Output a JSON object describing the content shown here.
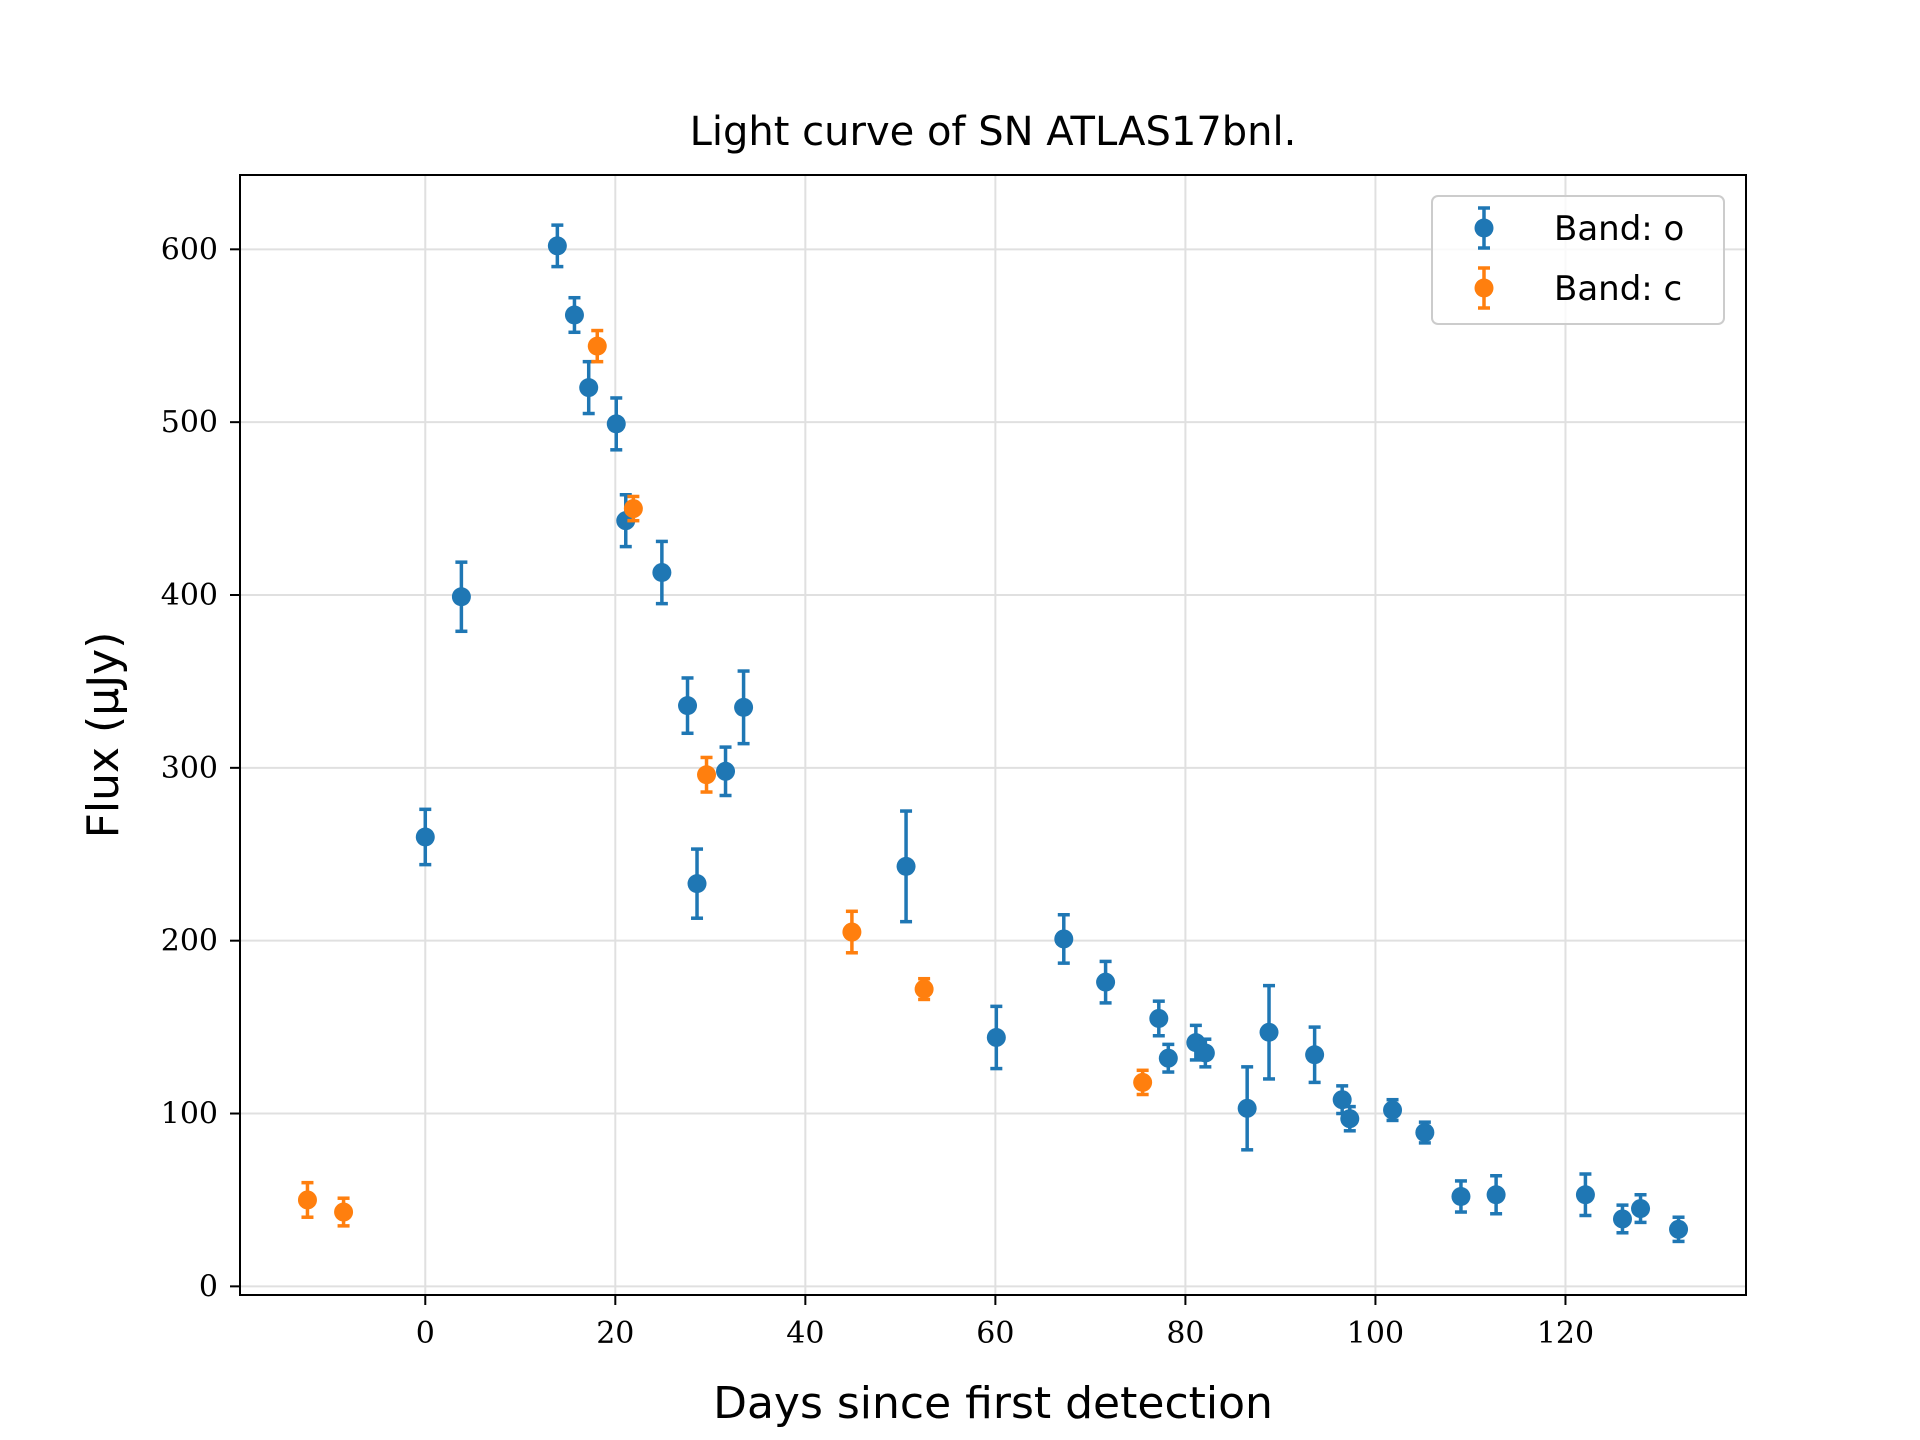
{
  "chart_data": {
    "type": "scatter",
    "title": "Light curve of SN ATLAS17bnl.",
    "xlabel": "Days since first detection",
    "ylabel": "Flux (μJy)",
    "xlim": [
      -19.5,
      139
    ],
    "ylim": [
      -5,
      643
    ],
    "xticks": [
      0,
      20,
      40,
      60,
      80,
      100,
      120
    ],
    "yticks": [
      0,
      100,
      200,
      300,
      400,
      500,
      600
    ],
    "grid": true,
    "legend_position": "top-right",
    "series": [
      {
        "name": "Band: o",
        "color": "#1f77b4",
        "points": [
          {
            "x": 0,
            "y": 260,
            "err": 16
          },
          {
            "x": 3.8,
            "y": 399,
            "err": 20
          },
          {
            "x": 13.9,
            "y": 602,
            "err": 12
          },
          {
            "x": 15.7,
            "y": 562,
            "err": 10
          },
          {
            "x": 17.2,
            "y": 520,
            "err": 15
          },
          {
            "x": 20.1,
            "y": 499,
            "err": 15
          },
          {
            "x": 21.1,
            "y": 443,
            "err": 15
          },
          {
            "x": 24.9,
            "y": 413,
            "err": 18
          },
          {
            "x": 27.6,
            "y": 336,
            "err": 16
          },
          {
            "x": 28.6,
            "y": 233,
            "err": 20
          },
          {
            "x": 31.6,
            "y": 298,
            "err": 14
          },
          {
            "x": 33.5,
            "y": 335,
            "err": 21
          },
          {
            "x": 50.6,
            "y": 243,
            "err": 32
          },
          {
            "x": 60.1,
            "y": 144,
            "err": 18
          },
          {
            "x": 67.2,
            "y": 201,
            "err": 14
          },
          {
            "x": 71.6,
            "y": 176,
            "err": 12
          },
          {
            "x": 77.2,
            "y": 155,
            "err": 10
          },
          {
            "x": 78.2,
            "y": 132,
            "err": 8
          },
          {
            "x": 81.1,
            "y": 141,
            "err": 10
          },
          {
            "x": 82.1,
            "y": 135,
            "err": 8
          },
          {
            "x": 86.5,
            "y": 103,
            "err": 24
          },
          {
            "x": 88.8,
            "y": 147,
            "err": 27
          },
          {
            "x": 93.6,
            "y": 134,
            "err": 16
          },
          {
            "x": 96.5,
            "y": 108,
            "err": 8
          },
          {
            "x": 97.3,
            "y": 97,
            "err": 7
          },
          {
            "x": 101.8,
            "y": 102,
            "err": 6
          },
          {
            "x": 105.2,
            "y": 89,
            "err": 6
          },
          {
            "x": 109.0,
            "y": 52,
            "err": 9
          },
          {
            "x": 112.7,
            "y": 53,
            "err": 11
          },
          {
            "x": 122.1,
            "y": 53,
            "err": 12
          },
          {
            "x": 126.0,
            "y": 39,
            "err": 8
          },
          {
            "x": 127.9,
            "y": 45,
            "err": 8
          },
          {
            "x": 131.9,
            "y": 33,
            "err": 7
          }
        ]
      },
      {
        "name": "Band: c",
        "color": "#ff7f0e",
        "points": [
          {
            "x": -12.4,
            "y": 50,
            "err": 10
          },
          {
            "x": -8.6,
            "y": 43,
            "err": 8
          },
          {
            "x": 18.1,
            "y": 544,
            "err": 9
          },
          {
            "x": 21.9,
            "y": 450,
            "err": 7
          },
          {
            "x": 29.6,
            "y": 296,
            "err": 10
          },
          {
            "x": 44.9,
            "y": 205,
            "err": 12
          },
          {
            "x": 52.5,
            "y": 172,
            "err": 6
          },
          {
            "x": 75.5,
            "y": 118,
            "err": 7
          }
        ]
      }
    ]
  }
}
